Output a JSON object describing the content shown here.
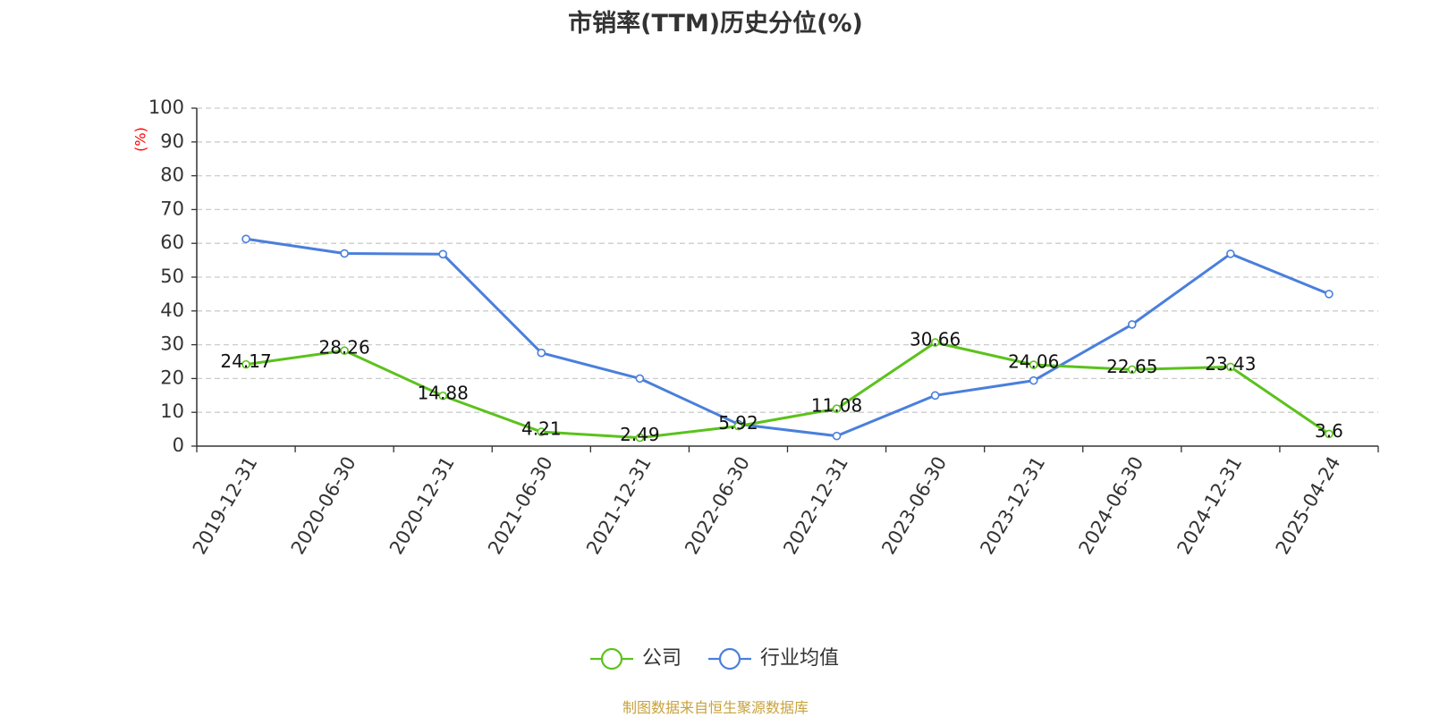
{
  "chart_data": {
    "type": "line",
    "title": "市销率(TTM)历史分位(%)",
    "xlabel": "",
    "ylabel": "(%)",
    "ylim": [
      0,
      100
    ],
    "yticks": [
      0,
      10,
      20,
      30,
      40,
      50,
      60,
      70,
      80,
      90,
      100
    ],
    "grid": true,
    "legend_position": "bottom",
    "categories": [
      "2019-12-31",
      "2020-06-30",
      "2020-12-31",
      "2021-06-30",
      "2021-12-31",
      "2022-06-30",
      "2022-12-31",
      "2023-06-30",
      "2023-12-31",
      "2024-06-30",
      "2024-12-31",
      "2025-04-24"
    ],
    "series": [
      {
        "name": "公司",
        "color": "#5bc21c",
        "values": [
          24.17,
          28.26,
          14.88,
          4.21,
          2.49,
          5.92,
          11.08,
          30.66,
          24.06,
          22.65,
          23.43,
          3.6
        ],
        "data_labels": [
          "24.17",
          "28.26",
          "14.88",
          "4.21",
          "2.49",
          "5.92",
          "11.08",
          "30.66",
          "24.06",
          "22.65",
          "23.43",
          "3.6"
        ]
      },
      {
        "name": "行业均值",
        "color": "#4a7fdc",
        "values": [
          61.3,
          57.0,
          56.8,
          27.6,
          20.0,
          6.5,
          3.0,
          15.0,
          19.4,
          36.0,
          56.9,
          45.0
        ]
      }
    ]
  },
  "source": "制图数据来自恒生聚源数据库"
}
